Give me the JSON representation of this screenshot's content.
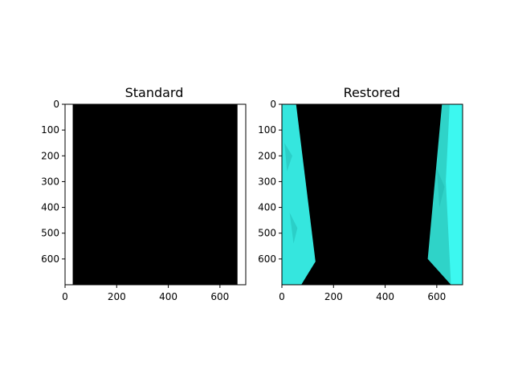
{
  "figure": {
    "background": "#ffffff"
  },
  "chart_data": [
    {
      "type": "heatmap",
      "title": "Standard",
      "xlabel": "",
      "ylabel": "",
      "xlim": [
        0,
        700
      ],
      "ylim": [
        700,
        0
      ],
      "xticks": [
        0,
        200,
        400,
        600
      ],
      "yticks": [
        0,
        100,
        200,
        300,
        400,
        500,
        600
      ],
      "y_axis_inverted": true,
      "grid": false,
      "image_content": "black frame with white vertical margins at both sides",
      "regions": [
        {
          "kind": "margin",
          "color": "#ffffff",
          "x_range": [
            0,
            30
          ],
          "y_range": [
            0,
            700
          ]
        },
        {
          "kind": "image",
          "color": "#000000",
          "x_range": [
            30,
            668
          ],
          "y_range": [
            0,
            700
          ]
        },
        {
          "kind": "margin",
          "color": "#ffffff",
          "x_range": [
            668,
            700
          ],
          "y_range": [
            0,
            700
          ]
        }
      ]
    },
    {
      "type": "heatmap",
      "title": "Restored",
      "xlabel": "",
      "ylabel": "",
      "xlim": [
        0,
        700
      ],
      "ylim": [
        700,
        0
      ],
      "xticks": [
        0,
        200,
        400,
        600
      ],
      "yticks": [
        0,
        100,
        200,
        300,
        400,
        500,
        600
      ],
      "y_axis_inverted": true,
      "grid": false,
      "image_content": "black frame with cyan wedge-shaped regions at the left and right edges",
      "regions": [
        {
          "kind": "wedge-left",
          "color": "#35e6de",
          "polygon": [
            [
              0,
              0
            ],
            [
              55,
              0
            ],
            [
              130,
              610
            ],
            [
              75,
              700
            ],
            [
              0,
              700
            ]
          ]
        },
        {
          "kind": "wedge-right",
          "color": "#2fd3c8",
          "polygon": [
            [
              620,
              0
            ],
            [
              700,
              0
            ],
            [
              700,
              700
            ],
            [
              655,
              700
            ],
            [
              565,
              600
            ]
          ]
        },
        {
          "kind": "edge-strip",
          "color": "#3cf8f0",
          "polygon": [
            [
              650,
              0
            ],
            [
              700,
              0
            ],
            [
              700,
              700
            ],
            [
              655,
              700
            ],
            [
              635,
              300
            ]
          ]
        }
      ]
    }
  ]
}
